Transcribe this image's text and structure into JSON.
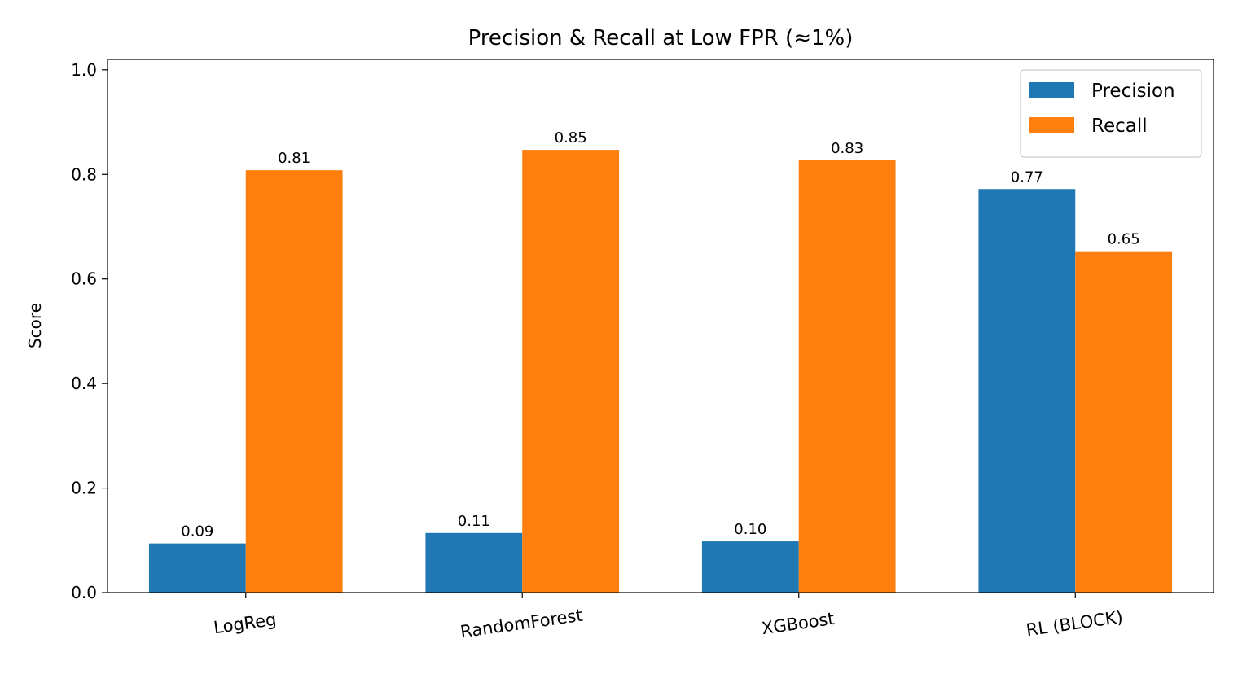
{
  "chart_data": {
    "type": "bar",
    "title": "Precision & Recall at Low FPR (≈1%)",
    "xlabel": "",
    "ylabel": "Score",
    "categories": [
      "LogReg",
      "RandomForest",
      "XGBoost",
      "RL (BLOCK)"
    ],
    "series": [
      {
        "name": "Precision",
        "color": "#1f77b4",
        "values": [
          0.094,
          0.114,
          0.098,
          0.772
        ],
        "labels": [
          "0.09",
          "0.11",
          "0.10",
          "0.77"
        ]
      },
      {
        "name": "Recall",
        "color": "#ff7f0e",
        "values": [
          0.808,
          0.847,
          0.827,
          0.653
        ],
        "labels": [
          "0.81",
          "0.85",
          "0.83",
          "0.65"
        ]
      }
    ],
    "ylim": [
      0,
      1.02
    ],
    "yticks": [
      "0.0",
      "0.2",
      "0.4",
      "0.6",
      "0.8",
      "1.0"
    ],
    "grid": false,
    "legend_position": "top-right",
    "xtick_rotation": "slight"
  }
}
